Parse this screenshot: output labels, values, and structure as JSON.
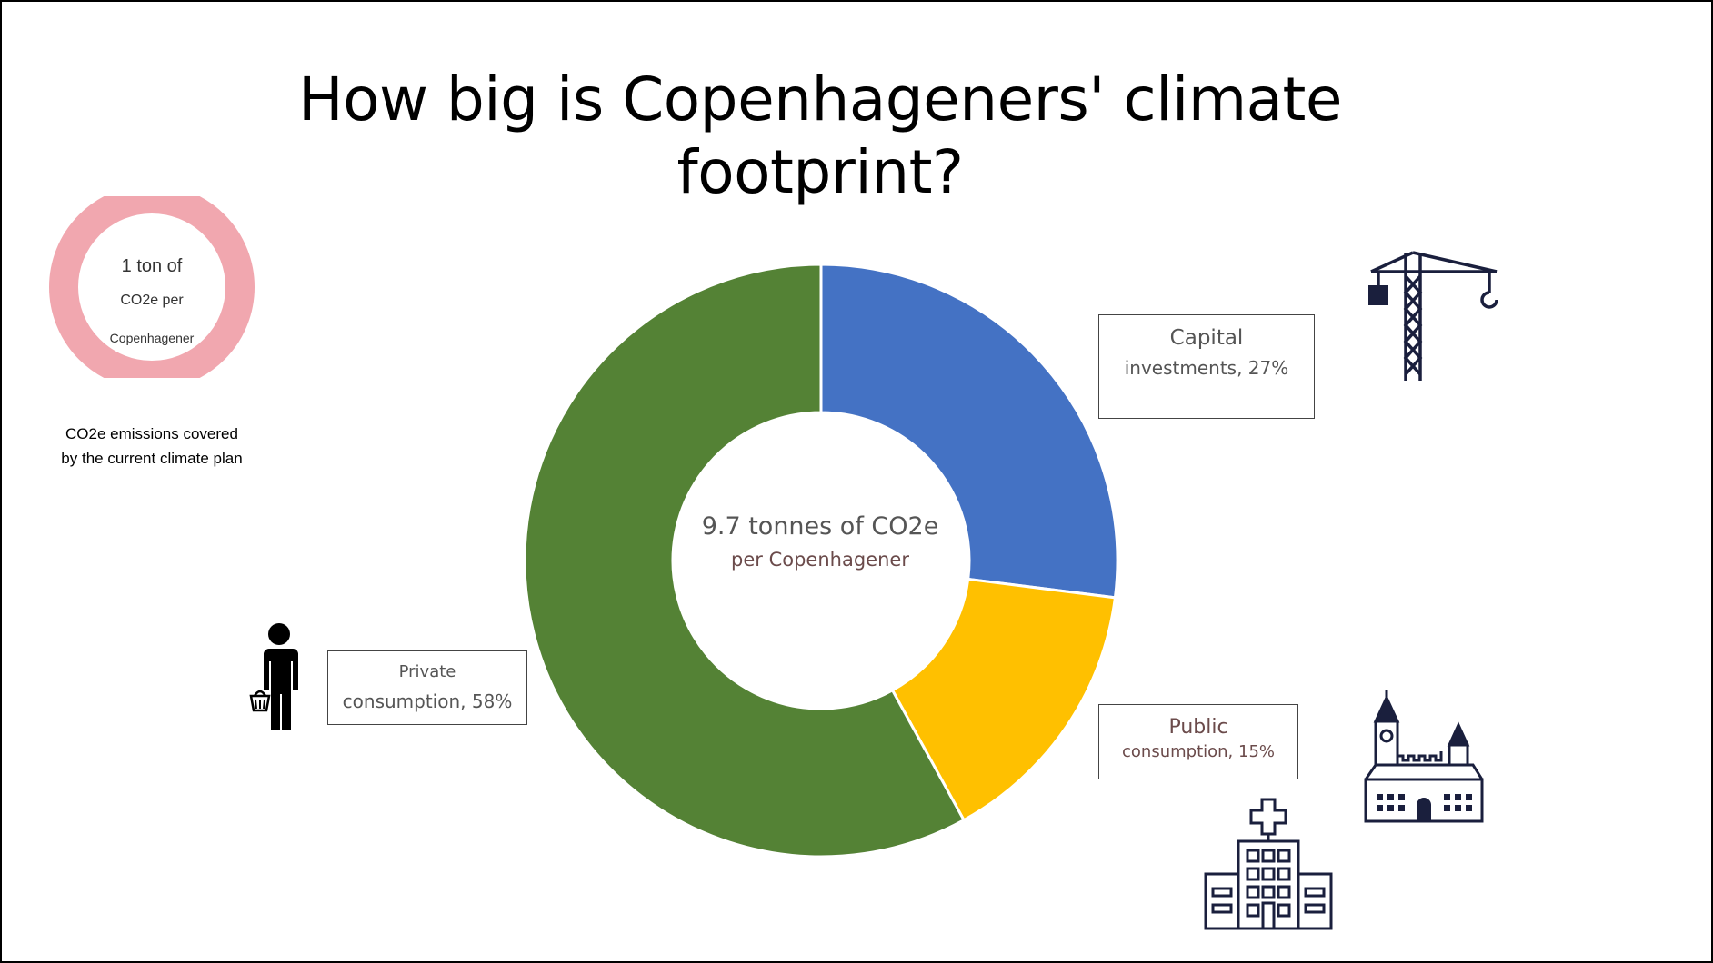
{
  "slide": {
    "title_line1": "How big is Copenhageners' climate",
    "title_line2": "footprint?"
  },
  "ring_legend": {
    "line1": "1 ton of",
    "line2": "CO2e per",
    "line3": "Copenhagener",
    "caption_line1": "CO2e emissions covered",
    "caption_line2": "by the current climate plan",
    "color": "#f1a7af"
  },
  "center": {
    "line1": "9.7 tonnes of CO2e",
    "line2": "per Copenhagener"
  },
  "callouts": {
    "capital": {
      "line1": "Capital",
      "line2": "investments, 27%"
    },
    "public": {
      "line1": "Public",
      "line2": "consumption, 15%"
    },
    "private": {
      "line1": "Private",
      "line2": "consumption, 58%"
    }
  },
  "icons": [
    "crane-icon",
    "person-with-basket-icon",
    "church-icon",
    "hospital-icon"
  ],
  "chart_data": {
    "type": "pie",
    "donut": true,
    "categories": [
      "Capital investments",
      "Public consumption",
      "Private consumption"
    ],
    "values": [
      27,
      15,
      58
    ],
    "unit": "%",
    "colors": [
      "#4472c4",
      "#ffc000",
      "#548235"
    ],
    "center_label": "9.7 tonnes of CO2e per Copenhagener"
  }
}
